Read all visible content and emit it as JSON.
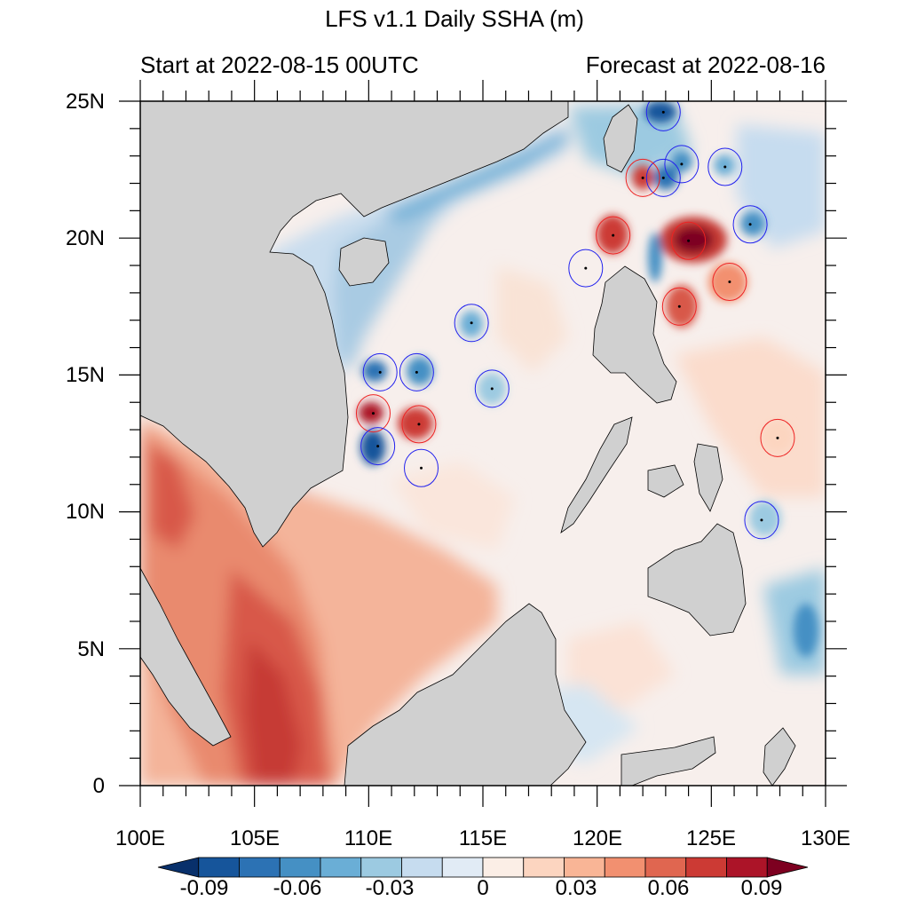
{
  "title": "LFS v1.1 Daily SSHA (m)",
  "subtitle_left": "Start at 2022-08-15 00UTC",
  "subtitle_right": "Forecast at 2022-08-16",
  "map": {
    "lon_range": [
      100,
      130
    ],
    "lat_range": [
      0,
      25
    ],
    "lon_ticks": [
      "100E",
      "105E",
      "110E",
      "115E",
      "120E",
      "125E",
      "130E"
    ],
    "lat_ticks": [
      "25N",
      "20N",
      "15N",
      "10N",
      "5N",
      "0"
    ]
  },
  "colorbar": {
    "labels": [
      "-0.09",
      "-0.06",
      "-0.03",
      "0",
      "0.03",
      "0.06",
      "0.09"
    ],
    "colors": [
      "#08306b",
      "#16559b",
      "#2c72b4",
      "#4590c4",
      "#6aaed6",
      "#9ccae1",
      "#c6dcef",
      "#e1ebf5",
      "#fbeee6",
      "#fcd5c0",
      "#f9b596",
      "#f29070",
      "#e06650",
      "#cc3a34",
      "#ac1428",
      "#7d0020"
    ]
  },
  "eddies": [
    {
      "lon": 122.9,
      "lat": 24.6,
      "type": "cyclonic"
    },
    {
      "lon": 123.7,
      "lat": 22.7,
      "type": "cyclonic"
    },
    {
      "lon": 122.9,
      "lat": 22.2,
      "type": "cyclonic"
    },
    {
      "lon": 122.0,
      "lat": 22.2,
      "type": "anticyclonic"
    },
    {
      "lon": 125.6,
      "lat": 22.6,
      "type": "cyclonic"
    },
    {
      "lon": 126.7,
      "lat": 20.5,
      "type": "cyclonic"
    },
    {
      "lon": 120.7,
      "lat": 20.1,
      "type": "anticyclonic"
    },
    {
      "lon": 124.0,
      "lat": 19.9,
      "type": "anticyclonic"
    },
    {
      "lon": 119.5,
      "lat": 18.9,
      "type": "cyclonic"
    },
    {
      "lon": 125.8,
      "lat": 18.4,
      "type": "anticyclonic"
    },
    {
      "lon": 123.6,
      "lat": 17.5,
      "type": "anticyclonic"
    },
    {
      "lon": 114.5,
      "lat": 16.9,
      "type": "cyclonic"
    },
    {
      "lon": 110.5,
      "lat": 15.1,
      "type": "cyclonic"
    },
    {
      "lon": 112.1,
      "lat": 15.1,
      "type": "cyclonic"
    },
    {
      "lon": 115.4,
      "lat": 14.5,
      "type": "cyclonic"
    },
    {
      "lon": 110.2,
      "lat": 13.6,
      "type": "anticyclonic"
    },
    {
      "lon": 112.2,
      "lat": 13.2,
      "type": "anticyclonic"
    },
    {
      "lon": 110.4,
      "lat": 12.4,
      "type": "cyclonic"
    },
    {
      "lon": 112.3,
      "lat": 11.6,
      "type": "cyclonic"
    },
    {
      "lon": 127.9,
      "lat": 12.7,
      "type": "anticyclonic"
    },
    {
      "lon": 127.2,
      "lat": 9.7,
      "type": "cyclonic"
    }
  ]
}
